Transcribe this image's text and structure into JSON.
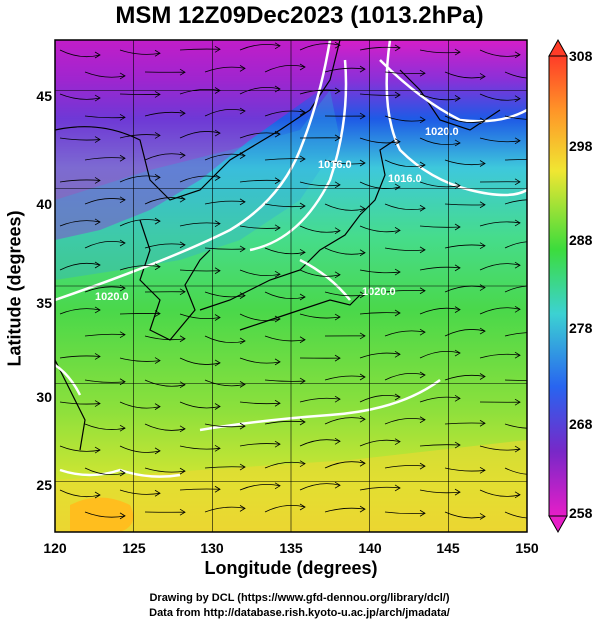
{
  "title": "MSM 12Z09Dec2023 (1013.2hPa)",
  "axes": {
    "xlabel": "Longitude (degrees)",
    "ylabel": "Latitude  (degrees)",
    "xticks": [
      "120",
      "125",
      "130",
      "135",
      "140",
      "145",
      "150"
    ],
    "yticks": [
      "25",
      "30",
      "35",
      "40",
      "45"
    ],
    "xlim": [
      120,
      150
    ],
    "ylim": [
      22.4,
      47.6
    ]
  },
  "colorbar": {
    "ticks": [
      "308",
      "298",
      "288",
      "278",
      "268",
      "258"
    ],
    "range": [
      258,
      308
    ]
  },
  "contour_labels": [
    "1016.0",
    "1016.0",
    "1020.0",
    "1020.0",
    "1020.0"
  ],
  "credits": {
    "line1": "Drawing by DCL (https://www.gfd-dennou.org/library/dcl/)",
    "line2": "Data from http://database.rish.kyoto-u.ac.jp/arch/jmadata/"
  },
  "colors": {
    "cold": "#c81ed0",
    "cool": "#1e46e6",
    "mid": "#46d2c8",
    "mild": "#3cdc3c",
    "warm": "#e6e632",
    "hot": "#ffb41e",
    "isobar": "#ffffff",
    "streamline": "#000000"
  }
}
